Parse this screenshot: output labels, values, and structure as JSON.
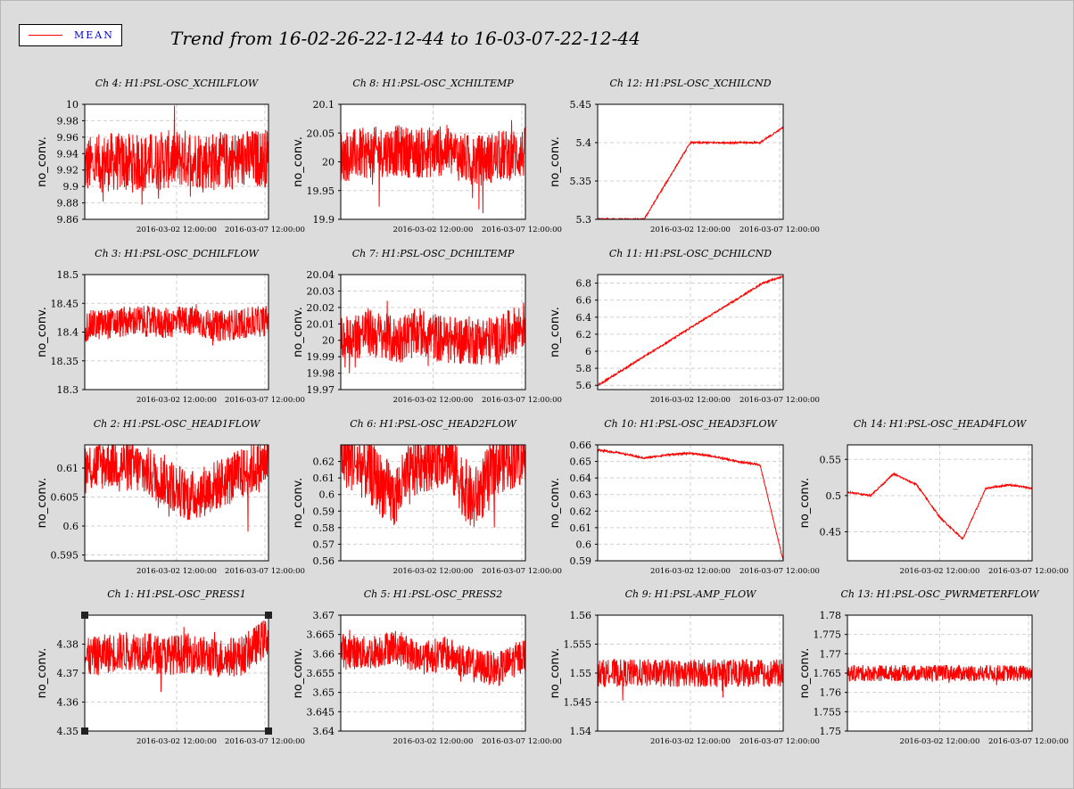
{
  "header": {
    "title": "Trend from 16-02-26-22-12-44 to 16-03-07-22-12-44",
    "legend_label": "MEAN"
  },
  "colors": {
    "series": "#ff0000",
    "legend_text": "#0000cc",
    "background": "#dcdcdc",
    "plot_bg": "#ffffff",
    "grid": "#d0d0d0"
  },
  "chart_data": [
    {
      "type": "line",
      "title": "Ch 4: H1:PSL-OSC_XCHILFLOW",
      "ylabel": "no_conv.",
      "yticks": [
        "9.86",
        "9.88",
        "9.9",
        "9.92",
        "9.94",
        "9.96",
        "9.98",
        "10"
      ],
      "ylim": [
        9.86,
        10.0
      ],
      "xticks": [
        "2016-03-02 12:00:00",
        "2016-03-07 12:00:00"
      ],
      "series": [
        {
          "values": [
            9.925,
            9.93,
            9.928,
            9.932,
            9.935,
            9.93,
            9.933,
            9.935
          ]
        }
      ],
      "noise_band": [
        9.87,
        9.99
      ]
    },
    {
      "type": "line",
      "title": "Ch 8: H1:PSL-OSC_XCHILTEMP",
      "ylabel": "no_conv.",
      "yticks": [
        "19.9",
        "19.95",
        "20",
        "20.05",
        "20.1"
      ],
      "ylim": [
        19.9,
        20.1
      ],
      "xticks": [
        "2016-03-02 12:00:00",
        "2016-03-07 12:00:00"
      ],
      "series": [
        {
          "values": [
            20.01,
            20.015,
            20.02,
            20.015,
            20.02,
            20.0,
            20.01,
            20.015
          ]
        }
      ],
      "noise_band": [
        19.94,
        20.09
      ]
    },
    {
      "type": "line",
      "title": "Ch 12: H1:PSL-OSC_XCHILCND",
      "ylabel": "no_conv.",
      "yticks": [
        "5.3",
        "5.35",
        "5.4",
        "5.45"
      ],
      "ylim": [
        5.3,
        5.45
      ],
      "xticks": [
        "2016-03-02 12:00:00",
        "2016-03-07 12:00:00"
      ],
      "series": [
        {
          "values": [
            5.3,
            5.3,
            5.3,
            5.35,
            5.4,
            5.4,
            5.4,
            5.4,
            5.42
          ]
        }
      ]
    },
    {
      "type": "line",
      "title": "Ch 3: H1:PSL-OSC_DCHILFLOW",
      "ylabel": "no_conv.",
      "yticks": [
        "18.3",
        "18.35",
        "18.4",
        "18.45",
        "18.5"
      ],
      "ylim": [
        18.3,
        18.5
      ],
      "xticks": [
        "2016-03-02 12:00:00",
        "2016-03-07 12:00:00"
      ],
      "series": [
        {
          "values": [
            18.41,
            18.415,
            18.42,
            18.415,
            18.42,
            18.41,
            18.415,
            18.42
          ]
        }
      ],
      "noise_band": [
        18.38,
        18.47
      ]
    },
    {
      "type": "line",
      "title": "Ch 7: H1:PSL-OSC_DCHILTEMP",
      "ylabel": "no_conv.",
      "yticks": [
        "19.97",
        "19.98",
        "19.99",
        "20",
        "20.01",
        "20.02",
        "20.03",
        "20.04"
      ],
      "ylim": [
        19.97,
        20.04
      ],
      "xticks": [
        "2016-03-02 12:00:00",
        "2016-03-07 12:00:00"
      ],
      "series": [
        {
          "values": [
            20.0,
            20.005,
            20.0,
            20.005,
            20.0,
            20.0,
            20.0,
            20.01
          ]
        }
      ],
      "noise_band": [
        19.98,
        20.03
      ]
    },
    {
      "type": "line",
      "title": "Ch 11: H1:PSL-OSC_DCHILCND",
      "ylabel": "no_conv.",
      "yticks": [
        "5.6",
        "5.8",
        "6",
        "6.2",
        "6.4",
        "6.6",
        "6.8"
      ],
      "ylim": [
        5.55,
        6.9
      ],
      "xticks": [
        "2016-03-02 12:00:00",
        "2016-03-07 12:00:00"
      ],
      "series": [
        {
          "values": [
            5.6,
            5.75,
            5.9,
            6.05,
            6.2,
            6.35,
            6.5,
            6.65,
            6.8,
            6.88
          ]
        }
      ]
    },
    {
      "type": "line",
      "title": "Ch 2: H1:PSL-OSC_HEAD1FLOW",
      "ylabel": "no_conv.",
      "yticks": [
        "0.595",
        "0.6",
        "0.605",
        "0.61"
      ],
      "ylim": [
        0.594,
        0.614
      ],
      "xticks": [
        "2016-03-02 12:00:00",
        "2016-03-07 12:00:00"
      ],
      "series": [
        {
          "values": [
            0.61,
            0.611,
            0.61,
            0.608,
            0.605,
            0.607,
            0.609,
            0.611
          ]
        }
      ],
      "noise_band": [
        0.598,
        0.613
      ]
    },
    {
      "type": "line",
      "title": "Ch 6: H1:PSL-OSC_HEAD2FLOW",
      "ylabel": "no_conv.",
      "yticks": [
        "0.56",
        "0.57",
        "0.58",
        "0.59",
        "0.6",
        "0.61",
        "0.62"
      ],
      "ylim": [
        0.56,
        0.63
      ],
      "xticks": [
        "2016-03-02 12:00:00",
        "2016-03-07 12:00:00"
      ],
      "series": [
        {
          "values": [
            0.625,
            0.615,
            0.598,
            0.62,
            0.625,
            0.595,
            0.62,
            0.625
          ]
        }
      ],
      "noise_band": [
        0.565,
        0.63
      ]
    },
    {
      "type": "line",
      "title": "Ch 10: H1:PSL-OSC_HEAD3FLOW",
      "ylabel": "no_conv.",
      "yticks": [
        "0.59",
        "0.6",
        "0.61",
        "0.62",
        "0.63",
        "0.64",
        "0.65",
        "0.66"
      ],
      "ylim": [
        0.59,
        0.66
      ],
      "xticks": [
        "2016-03-02 12:00:00",
        "2016-03-07 12:00:00"
      ],
      "series": [
        {
          "values": [
            0.657,
            0.655,
            0.652,
            0.654,
            0.655,
            0.653,
            0.65,
            0.648,
            0.59
          ]
        }
      ]
    },
    {
      "type": "line",
      "title": "Ch 14: H1:PSL-OSC_HEAD4FLOW",
      "ylabel": "no_conv.",
      "yticks": [
        "0.45",
        "0.5",
        "0.55"
      ],
      "ylim": [
        0.41,
        0.57
      ],
      "xticks": [
        "2016-03-02 12:00:00",
        "2016-03-07 12:00:00"
      ],
      "series": [
        {
          "values": [
            0.505,
            0.5,
            0.53,
            0.515,
            0.47,
            0.44,
            0.51,
            0.515,
            0.51
          ]
        }
      ]
    },
    {
      "type": "line",
      "title": "Ch 1: H1:PSL-OSC_PRESS1",
      "ylabel": "no_conv.",
      "yticks": [
        "4.35",
        "4.36",
        "4.37",
        "4.38"
      ],
      "ylim": [
        4.35,
        4.39
      ],
      "xticks": [
        "2016-03-02 12:00:00",
        "2016-03-07 12:00:00"
      ],
      "series": [
        {
          "values": [
            4.375,
            4.377,
            4.378,
            4.376,
            4.377,
            4.375,
            4.376,
            4.383
          ]
        }
      ],
      "noise_band": [
        4.365,
        4.388
      ]
    },
    {
      "type": "line",
      "title": "Ch 5: H1:PSL-OSC_PRESS2",
      "ylabel": "no_conv.",
      "yticks": [
        "3.64",
        "3.645",
        "3.65",
        "3.655",
        "3.66",
        "3.665",
        "3.67"
      ],
      "ylim": [
        3.64,
        3.67
      ],
      "xticks": [
        "2016-03-02 12:00:00",
        "2016-03-07 12:00:00"
      ],
      "series": [
        {
          "values": [
            3.661,
            3.66,
            3.662,
            3.659,
            3.66,
            3.657,
            3.656,
            3.66
          ]
        }
      ],
      "noise_band": [
        3.652,
        3.667
      ]
    },
    {
      "type": "line",
      "title": "Ch 9: H1:PSL-AMP_FLOW",
      "ylabel": "no_conv.",
      "yticks": [
        "1.54",
        "1.545",
        "1.55",
        "1.555",
        "1.56"
      ],
      "ylim": [
        1.54,
        1.56
      ],
      "xticks": [
        "2016-03-02 12:00:00",
        "2016-03-07 12:00:00"
      ],
      "series": [
        {
          "values": [
            1.55,
            1.55,
            1.55,
            1.55,
            1.55,
            1.55,
            1.55,
            1.55
          ]
        }
      ],
      "noise_band": [
        1.547,
        1.555
      ]
    },
    {
      "type": "line",
      "title": "Ch 13: H1:PSL-OSC_PWRMETERFLOW",
      "ylabel": "no_conv.",
      "yticks": [
        "1.75",
        "1.755",
        "1.76",
        "1.765",
        "1.77",
        "1.775",
        "1.78"
      ],
      "ylim": [
        1.75,
        1.78
      ],
      "xticks": [
        "2016-03-02 12:00:00",
        "2016-03-07 12:00:00"
      ],
      "series": [
        {
          "values": [
            1.765,
            1.765,
            1.765,
            1.765,
            1.765,
            1.765,
            1.765,
            1.765
          ]
        }
      ],
      "noise_band": [
        1.761,
        1.768
      ]
    }
  ]
}
